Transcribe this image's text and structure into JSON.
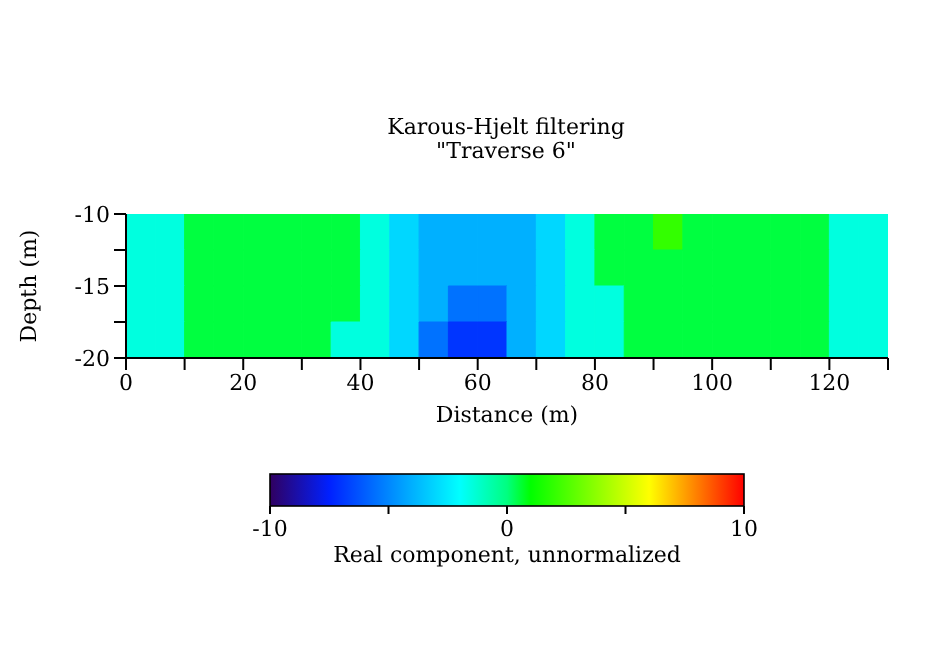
{
  "chart_data": {
    "type": "heatmap",
    "title": "Karous-Hjelt filtering",
    "subtitle": "\"Traverse 6\"",
    "xlabel": "Distance (m)",
    "ylabel": "Depth (m)",
    "clabel": "Real component, unnormalized",
    "x": [
      2.5,
      7.5,
      12.5,
      17.5,
      22.5,
      27.5,
      32.5,
      37.5,
      42.5,
      47.5,
      52.5,
      57.5,
      62.5,
      67.5,
      72.5,
      77.5,
      82.5,
      87.5,
      92.5,
      97.5,
      102.5,
      107.5,
      112.5,
      117.5,
      122.5,
      127.5
    ],
    "y": [
      -11.25,
      -13.75,
      -16.25,
      -18.75
    ],
    "cells": [
      [
        -1.5,
        -1.5,
        0.5,
        0.5,
        0.5,
        0.5,
        0.5,
        0.5,
        -1.5,
        -3,
        -4,
        -4,
        -4,
        -4,
        -3,
        -1.5,
        0.5,
        0.5,
        2,
        0.5,
        0.5,
        0.5,
        0.5,
        0.5,
        -1.5,
        -1.5
      ],
      [
        -1.5,
        -1.5,
        0.5,
        0.5,
        0.5,
        0.5,
        0.5,
        0.5,
        -1.5,
        -3,
        -4,
        -4,
        -4,
        -4,
        -3,
        -1.5,
        0.5,
        0.5,
        0.5,
        0.5,
        0.5,
        0.5,
        0.5,
        0.5,
        -1.5,
        -1.5
      ],
      [
        -1.5,
        -1.5,
        0.5,
        0.5,
        0.5,
        0.5,
        0.5,
        0.5,
        -1.5,
        -3,
        -4,
        -5.5,
        -5.5,
        -4,
        -3,
        -1.5,
        -1.5,
        0.5,
        0.5,
        0.5,
        0.5,
        0.5,
        0.5,
        0.5,
        -1.5,
        -1.5
      ],
      [
        -1.5,
        -1.5,
        0.5,
        0.5,
        0.5,
        0.5,
        0.5,
        -1.5,
        -1.5,
        -3,
        -5.5,
        -7,
        -7,
        -4,
        -3,
        -1.5,
        -1.5,
        0.5,
        0.5,
        0.5,
        0.5,
        0.5,
        0.5,
        0.5,
        -1.5,
        -1.5
      ]
    ],
    "xlim": [
      0,
      130
    ],
    "xticks": [
      0,
      {
        "value": 10,
        "label": null
      },
      20,
      {
        "value": 30,
        "label": null
      },
      40,
      {
        "value": 50,
        "label": null
      },
      60,
      {
        "value": 70,
        "label": null
      },
      80,
      {
        "value": 90,
        "label": null
      },
      100,
      {
        "value": 110,
        "label": null
      },
      120,
      {
        "value": 130,
        "label": null
      }
    ],
    "ylim": [
      -20,
      -10
    ],
    "yticks": [
      -20,
      {
        "value": -17.5,
        "label": null
      },
      -15,
      {
        "value": -12.5,
        "label": null
      },
      -10
    ],
    "clim": [
      -10,
      10
    ],
    "cticks": [
      -10,
      {
        "value": -5,
        "label": null
      },
      0,
      {
        "value": 5,
        "label": null
      },
      10
    ],
    "grid": false
  }
}
